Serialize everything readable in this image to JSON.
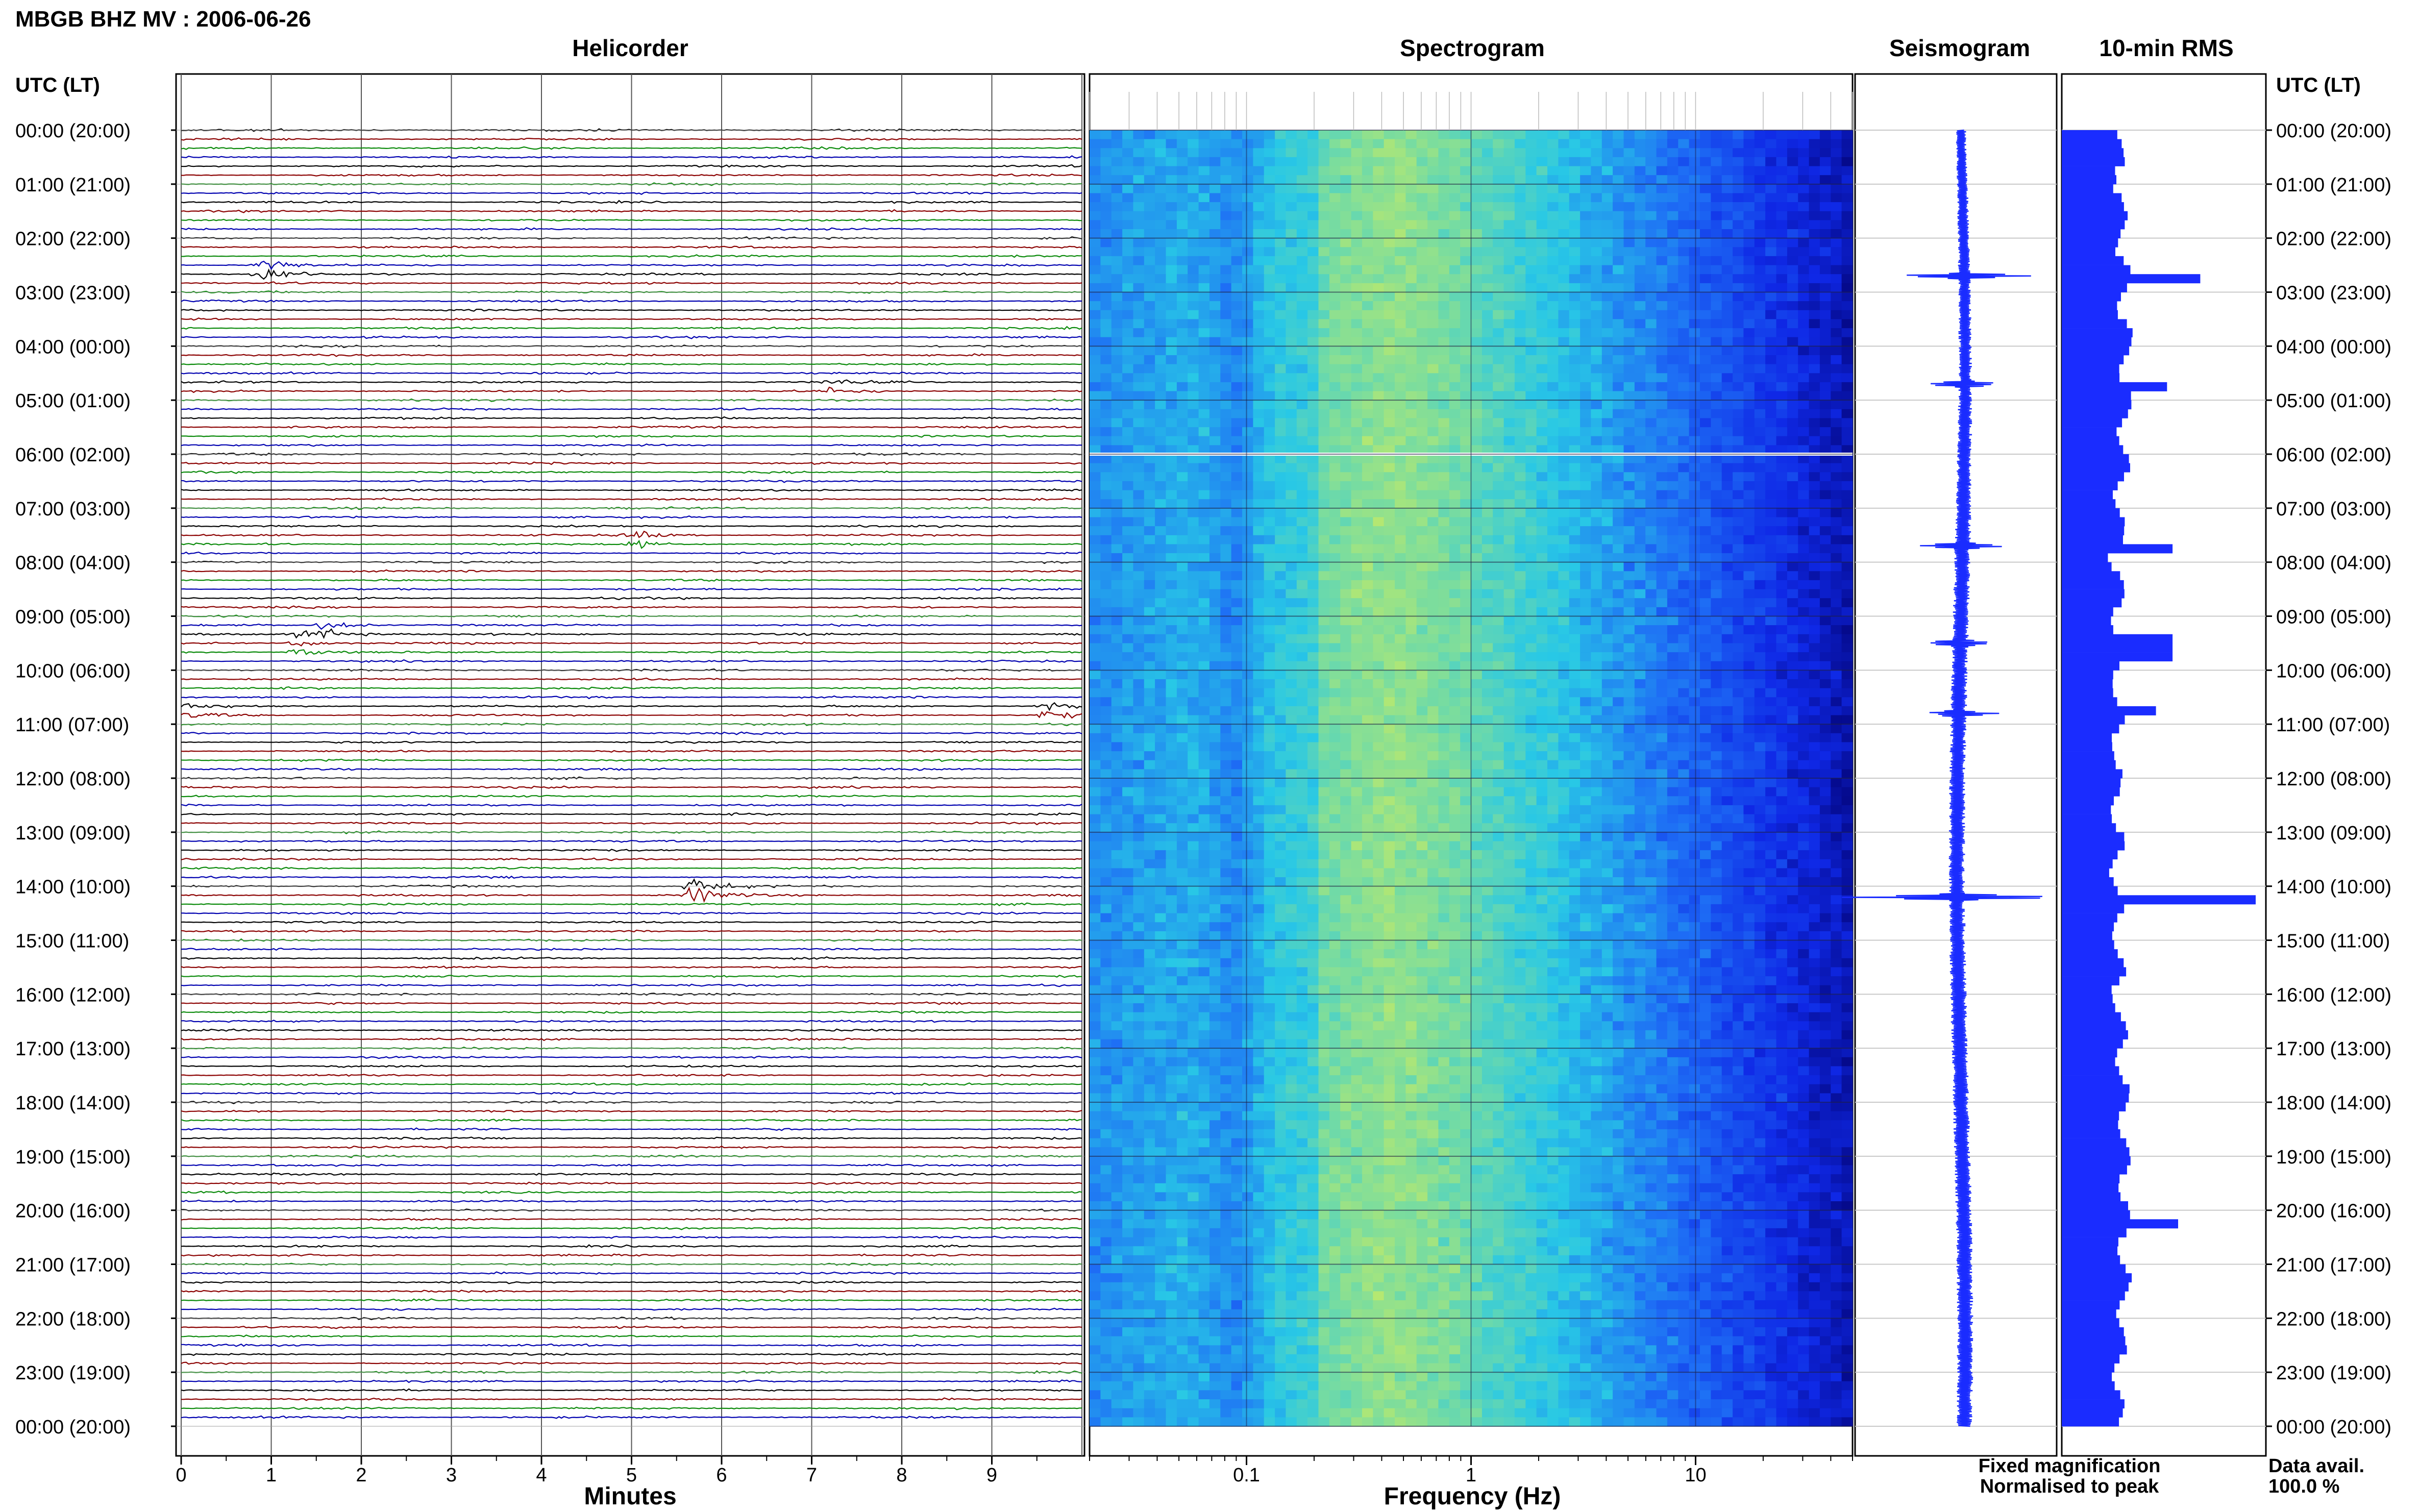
{
  "header": {
    "title": "MBGB BHZ MV : 2006-06-26",
    "left_axis_label": "UTC (LT)",
    "right_axis_label": "UTC (LT)"
  },
  "panels": {
    "helicorder": "Helicorder",
    "spectrogram": "Spectrogram",
    "seismogram": "Seismogram",
    "rms": "10-min RMS"
  },
  "x_axes": {
    "minutes": {
      "label": "Minutes",
      "ticks": [
        "0",
        "1",
        "2",
        "3",
        "4",
        "5",
        "6",
        "7",
        "8",
        "9"
      ]
    },
    "frequency": {
      "label": "Frequency (Hz)",
      "ticks": [
        "0.1",
        "1",
        "10"
      ],
      "scale": "log",
      "range": [
        0.02,
        50
      ]
    }
  },
  "time_labels": [
    "00:00 (20:00)",
    "01:00 (21:00)",
    "02:00 (22:00)",
    "03:00 (23:00)",
    "04:00 (00:00)",
    "05:00 (01:00)",
    "06:00 (02:00)",
    "07:00 (03:00)",
    "08:00 (04:00)",
    "09:00 (05:00)",
    "10:00 (06:00)",
    "11:00 (07:00)",
    "12:00 (08:00)",
    "13:00 (09:00)",
    "14:00 (10:00)",
    "15:00 (11:00)",
    "16:00 (12:00)",
    "17:00 (13:00)",
    "18:00 (14:00)",
    "19:00 (15:00)",
    "20:00 (16:00)",
    "21:00 (17:00)",
    "22:00 (18:00)",
    "23:00 (19:00)",
    "00:00 (20:00)"
  ],
  "legend": {
    "fixed": "Fixed magnification",
    "normalised": "Normalised to peak",
    "fixed_color": "#0000ee",
    "normalised_color": "#ee0000"
  },
  "availability": {
    "label": "Data avail.",
    "value": "100.0 %"
  },
  "colors": {
    "trace_cycle": [
      "#000000",
      "#8b0000",
      "#0a8a0a",
      "#0000b0"
    ],
    "seismogram": "#1a2cff",
    "rms_bar": "#1a2cff",
    "grid": "#c8c8c8"
  },
  "chart_data": [
    {
      "type": "helicorder",
      "x_unit": "minutes",
      "x_range": [
        0,
        10
      ],
      "y_unit": "hour (UTC)",
      "y_range": [
        0,
        24
      ],
      "lines_per_hour": 6,
      "events": [
        {
          "hour": 2.6,
          "minute": 0.9,
          "amplitude": 3.5
        },
        {
          "hour": 4.7,
          "minute": 7.2,
          "amplitude": 1.5
        },
        {
          "hour": 7.6,
          "minute": 5.0,
          "amplitude": 2.3
        },
        {
          "hour": 9.3,
          "minute": 1.6,
          "amplitude": 2.2
        },
        {
          "hour": 9.5,
          "minute": 1.3,
          "amplitude": 1.8
        },
        {
          "hour": 10.7,
          "minute": 9.6,
          "amplitude": 2.5
        },
        {
          "hour": 10.8,
          "minute": 0.1,
          "amplitude": 1.5
        },
        {
          "hour": 14.1,
          "minute": 5.7,
          "amplitude": 4.5
        }
      ]
    },
    {
      "type": "heatmap",
      "x_unit": "Hz",
      "x_range": [
        0.02,
        50
      ],
      "x_scale": "log",
      "y_unit": "hour (UTC)",
      "y_range": [
        0,
        24
      ],
      "peak_band_hz": [
        0.2,
        1.0
      ],
      "gap_hour": 6.0
    },
    {
      "type": "rms_bar",
      "y_unit": "hour (UTC)",
      "interval_minutes": 10,
      "x_unit": "relative amplitude",
      "x_range": [
        0,
        3.5
      ],
      "baseline": 1.0,
      "peaks": [
        {
          "hour": 2.8,
          "value": 2.5
        },
        {
          "hour": 4.7,
          "value": 1.9
        },
        {
          "hour": 7.7,
          "value": 2.0
        },
        {
          "hour": 9.5,
          "value": 2.0
        },
        {
          "hour": 9.7,
          "value": 2.0
        },
        {
          "hour": 10.7,
          "value": 1.7
        },
        {
          "hour": 14.2,
          "value": 3.5
        },
        {
          "hour": 20.3,
          "value": 2.1
        }
      ]
    },
    {
      "type": "seismogram",
      "y_unit": "hour (UTC)",
      "spikes": [
        {
          "hour": 2.7,
          "amplitude": 0.45
        },
        {
          "hour": 4.7,
          "amplitude": 0.25
        },
        {
          "hour": 7.7,
          "amplitude": 0.3
        },
        {
          "hour": 9.5,
          "amplitude": 0.25
        },
        {
          "hour": 10.8,
          "amplitude": 0.2
        },
        {
          "hour": 14.2,
          "amplitude": 0.8
        }
      ]
    }
  ]
}
